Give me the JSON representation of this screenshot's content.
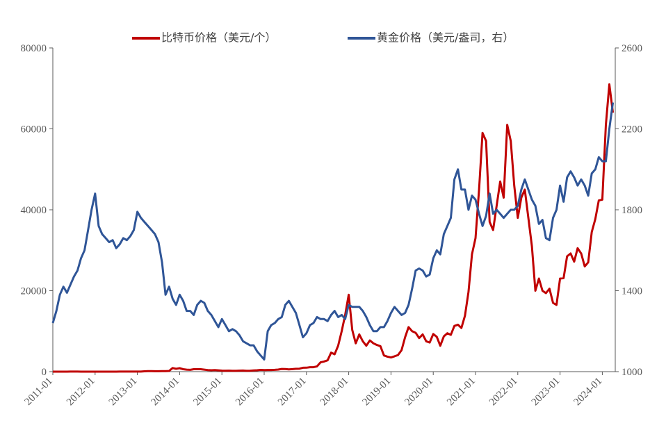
{
  "chart_data": {
    "type": "line",
    "x": [
      "2011-01",
      "2011-02",
      "2011-03",
      "2011-04",
      "2011-05",
      "2011-06",
      "2011-07",
      "2011-08",
      "2011-09",
      "2011-10",
      "2011-11",
      "2011-12",
      "2012-01",
      "2012-02",
      "2012-03",
      "2012-04",
      "2012-05",
      "2012-06",
      "2012-07",
      "2012-08",
      "2012-09",
      "2012-10",
      "2012-11",
      "2012-12",
      "2013-01",
      "2013-02",
      "2013-03",
      "2013-04",
      "2013-05",
      "2013-06",
      "2013-07",
      "2013-08",
      "2013-09",
      "2013-10",
      "2013-11",
      "2013-12",
      "2014-01",
      "2014-02",
      "2014-03",
      "2014-04",
      "2014-05",
      "2014-06",
      "2014-07",
      "2014-08",
      "2014-09",
      "2014-10",
      "2014-11",
      "2014-12",
      "2015-01",
      "2015-02",
      "2015-03",
      "2015-04",
      "2015-05",
      "2015-06",
      "2015-07",
      "2015-08",
      "2015-09",
      "2015-10",
      "2015-11",
      "2015-12",
      "2016-01",
      "2016-02",
      "2016-03",
      "2016-04",
      "2016-05",
      "2016-06",
      "2016-07",
      "2016-08",
      "2016-09",
      "2016-10",
      "2016-11",
      "2016-12",
      "2017-01",
      "2017-02",
      "2017-03",
      "2017-04",
      "2017-05",
      "2017-06",
      "2017-07",
      "2017-08",
      "2017-09",
      "2017-10",
      "2017-11",
      "2017-12",
      "2018-01",
      "2018-02",
      "2018-03",
      "2018-04",
      "2018-05",
      "2018-06",
      "2018-07",
      "2018-08",
      "2018-09",
      "2018-10",
      "2018-11",
      "2018-12",
      "2019-01",
      "2019-02",
      "2019-03",
      "2019-04",
      "2019-05",
      "2019-06",
      "2019-07",
      "2019-08",
      "2019-09",
      "2019-10",
      "2019-11",
      "2019-12",
      "2020-01",
      "2020-02",
      "2020-03",
      "2020-04",
      "2020-05",
      "2020-06",
      "2020-07",
      "2020-08",
      "2020-09",
      "2020-10",
      "2020-11",
      "2020-12",
      "2021-01",
      "2021-02",
      "2021-03",
      "2021-04",
      "2021-05",
      "2021-06",
      "2021-07",
      "2021-08",
      "2021-09",
      "2021-10",
      "2021-11",
      "2021-12",
      "2022-01",
      "2022-02",
      "2022-03",
      "2022-04",
      "2022-05",
      "2022-06",
      "2022-07",
      "2022-08",
      "2022-09",
      "2022-10",
      "2022-11",
      "2022-12",
      "2023-01",
      "2023-02",
      "2023-03",
      "2023-04",
      "2023-05",
      "2023-06",
      "2023-07",
      "2023-08",
      "2023-09",
      "2023-10",
      "2023-11",
      "2023-12",
      "2024-01",
      "2024-02",
      "2024-03",
      "2024-04"
    ],
    "xticks": [
      "2011-01",
      "2012-01",
      "2013-01",
      "2014-01",
      "2015-01",
      "2016-01",
      "2017-01",
      "2018-01",
      "2019-01",
      "2020-01",
      "2021-01",
      "2022-01",
      "2023-01",
      "2024-01"
    ],
    "ylim": [
      0,
      80000
    ],
    "yticks": [
      0,
      20000,
      40000,
      60000,
      80000
    ],
    "y2lim": [
      1000,
      2600
    ],
    "y2ticks": [
      1000,
      1400,
      1800,
      2200,
      2600
    ],
    "legend": "top",
    "series": [
      {
        "name": "比特币价格（美元/个）",
        "color": "#c00000",
        "values": [
          0.3,
          1,
          0.8,
          3,
          8,
          17,
          14,
          10,
          5,
          3,
          3,
          4,
          6,
          5,
          5,
          5,
          5,
          6,
          8,
          10,
          12,
          11,
          12,
          13,
          15,
          25,
          90,
          130,
          120,
          100,
          95,
          120,
          130,
          180,
          900,
          700,
          850,
          600,
          500,
          450,
          600,
          600,
          600,
          500,
          400,
          350,
          380,
          320,
          250,
          240,
          250,
          230,
          230,
          250,
          280,
          230,
          235,
          300,
          350,
          430,
          380,
          420,
          420,
          450,
          520,
          670,
          650,
          570,
          610,
          700,
          740,
          960,
          980,
          1100,
          1100,
          1300,
          2300,
          2500,
          2800,
          4700,
          4300,
          6400,
          10000,
          14000,
          19000,
          10300,
          7000,
          9200,
          7500,
          6400,
          7700,
          7000,
          6600,
          6300,
          4000,
          3700,
          3500,
          3800,
          4100,
          5300,
          8500,
          11000,
          10000,
          9600,
          8300,
          9200,
          7500,
          7200,
          9300,
          8600,
          6400,
          8700,
          9500,
          9100,
          11300,
          11600,
          10800,
          13800,
          19700,
          29000,
          33000,
          45000,
          59000,
          57000,
          37000,
          35000,
          41000,
          47000,
          43000,
          61000,
          57000,
          46000,
          38000,
          43000,
          45000,
          38000,
          31000,
          20000,
          23000,
          20000,
          19400,
          20500,
          17000,
          16500,
          23000,
          23100,
          28500,
          29200,
          27200,
          30500,
          29200,
          26000,
          27000,
          34500,
          37700,
          42300,
          42500,
          61000,
          71000,
          64000
        ]
      },
      {
        "name": "黄金价格（美元/盎司，右）",
        "color": "#2f5597",
        "axis": "y2",
        "values": [
          1240,
          1300,
          1380,
          1420,
          1390,
          1430,
          1470,
          1500,
          1560,
          1600,
          1700,
          1800,
          1880,
          1720,
          1680,
          1660,
          1640,
          1650,
          1610,
          1630,
          1660,
          1650,
          1670,
          1700,
          1790,
          1760,
          1740,
          1720,
          1700,
          1680,
          1640,
          1540,
          1380,
          1420,
          1360,
          1330,
          1380,
          1350,
          1300,
          1300,
          1280,
          1330,
          1350,
          1340,
          1300,
          1280,
          1250,
          1220,
          1260,
          1230,
          1200,
          1210,
          1200,
          1180,
          1150,
          1140,
          1130,
          1130,
          1100,
          1080,
          1060,
          1200,
          1230,
          1240,
          1260,
          1270,
          1330,
          1350,
          1320,
          1290,
          1230,
          1170,
          1190,
          1230,
          1240,
          1270,
          1260,
          1260,
          1250,
          1280,
          1300,
          1270,
          1280,
          1260,
          1330,
          1320,
          1320,
          1320,
          1300,
          1270,
          1230,
          1200,
          1200,
          1220,
          1220,
          1250,
          1290,
          1320,
          1300,
          1280,
          1290,
          1330,
          1410,
          1500,
          1510,
          1500,
          1470,
          1480,
          1560,
          1600,
          1580,
          1680,
          1720,
          1760,
          1950,
          2000,
          1900,
          1900,
          1800,
          1870,
          1850,
          1780,
          1720,
          1770,
          1880,
          1780,
          1800,
          1780,
          1760,
          1780,
          1800,
          1800,
          1820,
          1900,
          1950,
          1900,
          1850,
          1820,
          1730,
          1750,
          1660,
          1650,
          1760,
          1800,
          1920,
          1840,
          1960,
          1990,
          1960,
          1920,
          1950,
          1920,
          1870,
          1980,
          2000,
          2060,
          2040,
          2040,
          2200,
          2330
        ]
      }
    ]
  }
}
